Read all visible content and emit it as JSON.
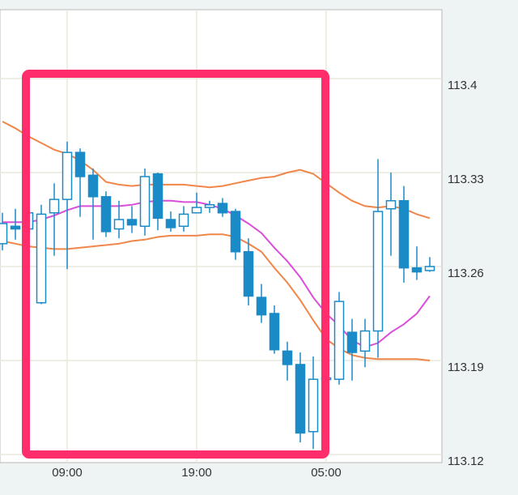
{
  "chart_data": {
    "type": "candlestick",
    "title": "",
    "xlabel": "",
    "ylabel": "",
    "ylim": [
      113.115,
      113.451
    ],
    "grid": true,
    "yticks": [
      "113.4",
      "113.33",
      "113.26",
      "113.19",
      "113.12"
    ],
    "ytick_values": [
      113.4,
      113.33,
      113.26,
      113.19,
      113.12
    ],
    "xticks": [
      {
        "label": "09:00",
        "index": 5
      },
      {
        "label": "19:00",
        "index": 15
      },
      {
        "label": "05:00",
        "index": 25
      }
    ],
    "times": [
      "04:00",
      "05:00",
      "06:00",
      "07:00",
      "08:00",
      "09:00",
      "10:00",
      "11:00",
      "12:00",
      "13:00",
      "14:00",
      "15:00",
      "16:00",
      "17:00",
      "18:00",
      "19:00",
      "20:00",
      "21:00",
      "22:00",
      "23:00",
      "00:00",
      "01:00",
      "02:00",
      "03:00",
      "04:00",
      "05:00",
      "06:00",
      "07:00",
      "08:00",
      "09:00",
      "10:00",
      "11:00",
      "12:00",
      "13:00"
    ],
    "candles": [
      [
        113.277,
        113.3,
        113.272,
        113.292
      ],
      [
        113.29,
        113.303,
        113.28,
        113.288
      ],
      [
        113.288,
        113.305,
        113.285,
        113.3
      ],
      [
        113.233,
        113.306,
        113.232,
        113.299
      ],
      [
        113.3,
        113.322,
        113.268,
        113.31
      ],
      [
        113.31,
        113.353,
        113.258,
        113.345
      ],
      [
        113.345,
        113.348,
        113.297,
        113.327
      ],
      [
        113.328,
        113.333,
        113.28,
        113.312
      ],
      [
        113.312,
        113.316,
        113.282,
        113.286
      ],
      [
        113.288,
        113.309,
        113.281,
        113.295
      ],
      [
        113.295,
        113.305,
        113.285,
        113.291
      ],
      [
        113.29,
        113.333,
        113.283,
        113.327
      ],
      [
        113.329,
        113.33,
        113.287,
        113.296
      ],
      [
        113.295,
        113.301,
        113.286,
        113.289
      ],
      [
        113.29,
        113.305,
        113.286,
        113.299
      ],
      [
        113.3,
        113.315,
        113.3,
        113.304
      ],
      [
        113.304,
        113.309,
        113.3,
        113.306
      ],
      [
        113.307,
        113.311,
        113.297,
        113.3
      ],
      [
        113.301,
        113.303,
        113.265,
        113.271
      ],
      [
        113.271,
        113.281,
        113.231,
        113.238
      ],
      [
        113.237,
        113.247,
        113.218,
        113.224
      ],
      [
        113.225,
        113.231,
        113.195,
        113.198
      ],
      [
        113.197,
        113.204,
        113.175,
        113.187
      ],
      [
        113.187,
        113.196,
        113.129,
        113.136
      ],
      [
        113.137,
        113.193,
        113.124,
        113.176
      ],
      [
        113.176,
        113.178,
        113.175,
        113.177
      ],
      [
        113.176,
        113.241,
        113.172,
        113.234
      ],
      [
        113.211,
        113.221,
        113.175,
        113.196
      ],
      [
        113.197,
        113.221,
        113.185,
        113.212
      ],
      [
        113.212,
        113.34,
        113.192,
        113.301
      ],
      [
        113.303,
        113.33,
        113.268,
        113.309
      ],
      [
        113.309,
        113.32,
        113.248,
        113.259
      ],
      [
        113.259,
        113.275,
        113.25,
        113.256
      ],
      [
        113.257,
        113.267,
        113.256,
        113.26
      ]
    ],
    "candle_format": [
      "open",
      "high",
      "low",
      "close"
    ],
    "series": [
      {
        "color": "#f0864a",
        "values": [
          113.368,
          113.363,
          113.357,
          113.352,
          113.347,
          113.344,
          113.339,
          113.332,
          113.323,
          113.321,
          113.32,
          113.321,
          113.321,
          113.321,
          113.321,
          113.32,
          113.319,
          113.32,
          113.322,
          113.324,
          113.326,
          113.327,
          113.33,
          113.332,
          113.329,
          113.322,
          113.315,
          113.309,
          113.305,
          113.304,
          113.305,
          113.303,
          113.299,
          113.296
        ]
      },
      {
        "color": "#d94fd9",
        "values": [
          113.293,
          113.293,
          113.293,
          113.295,
          113.298,
          113.302,
          113.305,
          113.305,
          113.305,
          113.305,
          113.306,
          113.308,
          113.309,
          113.309,
          113.308,
          113.308,
          113.306,
          113.303,
          113.298,
          113.292,
          113.285,
          113.274,
          113.264,
          113.252,
          113.237,
          113.225,
          113.216,
          113.205,
          113.2,
          113.203,
          113.211,
          113.217,
          113.225,
          113.238
        ]
      },
      {
        "color": "#f0864a",
        "values": [
          113.279,
          113.277,
          113.275,
          113.274,
          113.273,
          113.273,
          113.274,
          113.275,
          113.276,
          113.277,
          113.279,
          113.28,
          113.282,
          113.283,
          113.283,
          113.283,
          113.284,
          113.284,
          113.282,
          113.277,
          113.271,
          113.259,
          113.248,
          113.235,
          113.22,
          113.206,
          113.199,
          113.194,
          113.192,
          113.191,
          113.191,
          113.191,
          113.191,
          113.19
        ]
      }
    ],
    "colors": {
      "bull_fill": "#ffffff",
      "bear_fill": "#1b8bc7",
      "candle_stroke": "#1b8bc7",
      "grid": "#e8e8dc",
      "highlight": "#ff2d6b"
    },
    "annotation": {
      "type": "highlight-rectangle",
      "from_index": 2,
      "to_index": 25
    }
  }
}
